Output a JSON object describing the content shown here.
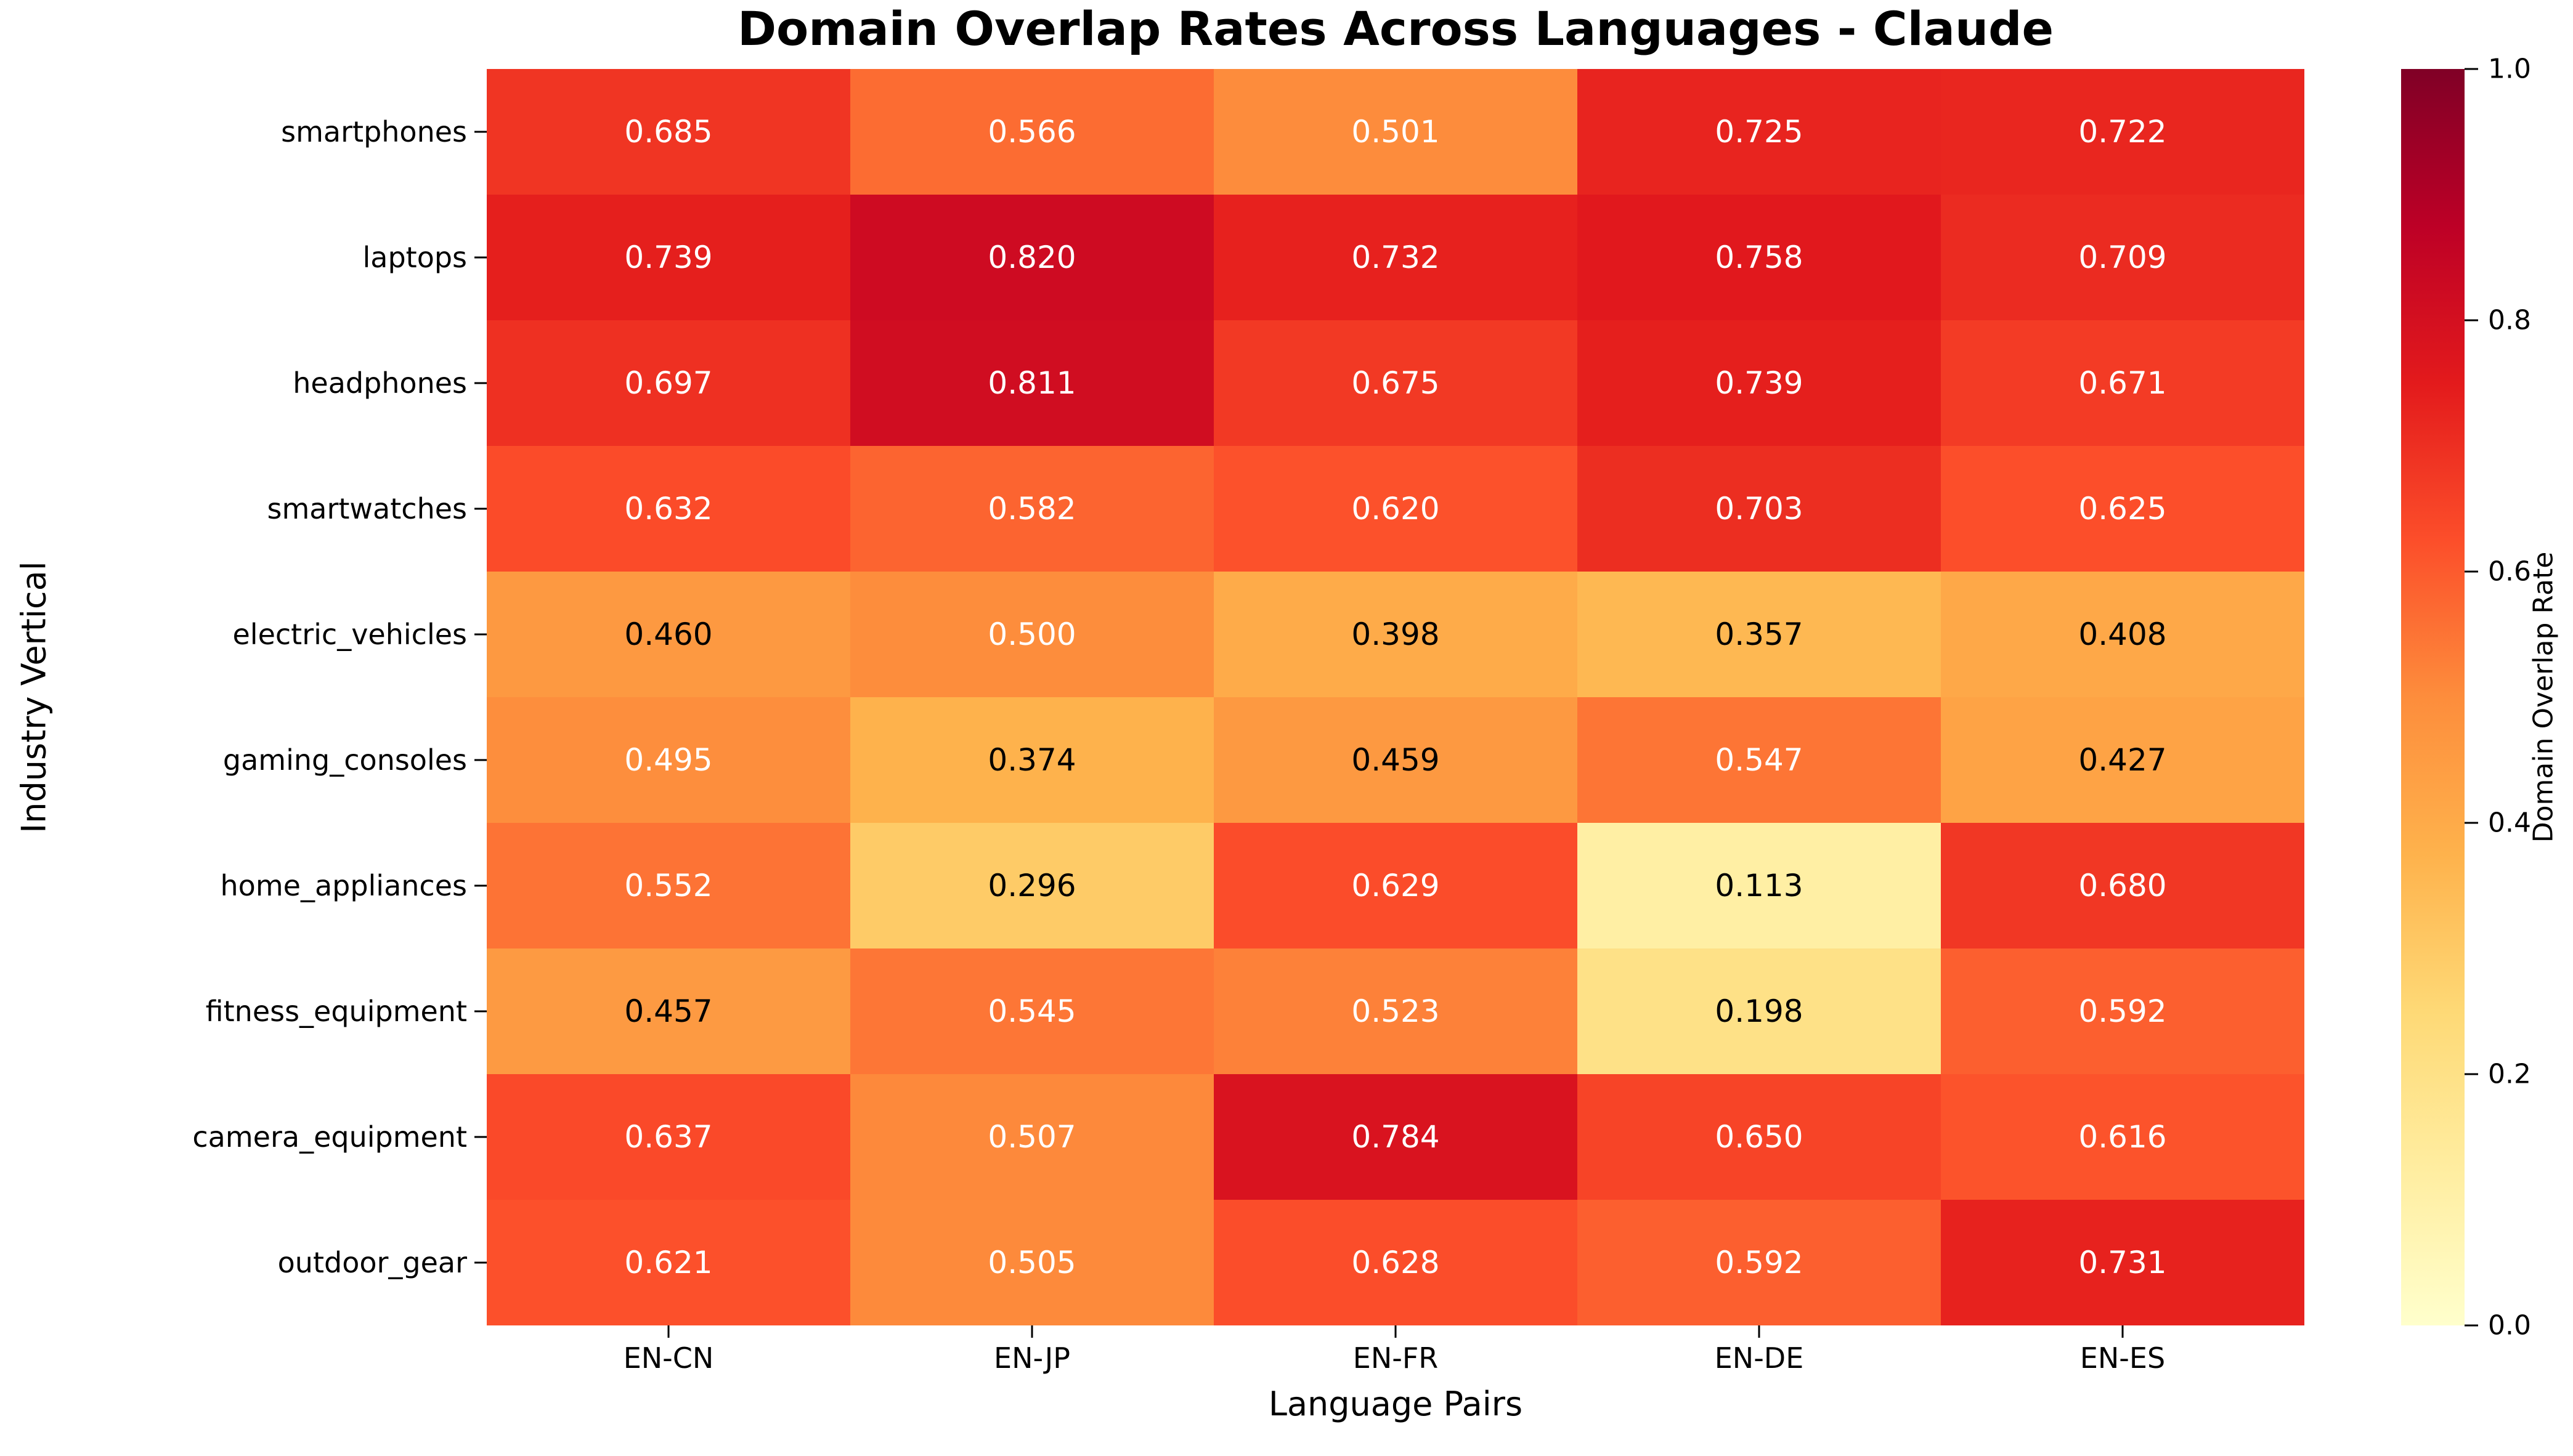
{
  "figure": {
    "background": "#ffffff"
  },
  "chart_data": {
    "type": "heatmap",
    "title": "Domain Overlap Rates Across Languages - Claude",
    "xlabel": "Language Pairs",
    "ylabel": "Industry Vertical",
    "x_categories": [
      "EN-CN",
      "EN-JP",
      "EN-FR",
      "EN-DE",
      "EN-ES"
    ],
    "y_categories": [
      "smartphones",
      "laptops",
      "headphones",
      "smartwatches",
      "electric_vehicles",
      "gaming_consoles",
      "home_appliances",
      "fitness_equipment",
      "camera_equipment",
      "outdoor_gear"
    ],
    "values": [
      [
        0.685,
        0.566,
        0.501,
        0.725,
        0.722
      ],
      [
        0.739,
        0.82,
        0.732,
        0.758,
        0.709
      ],
      [
        0.697,
        0.811,
        0.675,
        0.739,
        0.671
      ],
      [
        0.632,
        0.582,
        0.62,
        0.703,
        0.625
      ],
      [
        0.46,
        0.5,
        0.398,
        0.357,
        0.408
      ],
      [
        0.495,
        0.374,
        0.459,
        0.547,
        0.427
      ],
      [
        0.552,
        0.296,
        0.629,
        0.113,
        0.68
      ],
      [
        0.457,
        0.545,
        0.523,
        0.198,
        0.592
      ],
      [
        0.637,
        0.507,
        0.784,
        0.65,
        0.616
      ],
      [
        0.621,
        0.505,
        0.628,
        0.592,
        0.731
      ]
    ],
    "value_decimals": 3,
    "vmin": 0.0,
    "vmax": 1.0,
    "grid": false,
    "colormap": "YlOrRd",
    "colormap_stops": [
      {
        "pos": 0.0,
        "color": "#ffffcc"
      },
      {
        "pos": 0.125,
        "color": "#ffeda0"
      },
      {
        "pos": 0.25,
        "color": "#fed976"
      },
      {
        "pos": 0.375,
        "color": "#feb24c"
      },
      {
        "pos": 0.5,
        "color": "#fd8d3c"
      },
      {
        "pos": 0.625,
        "color": "#fc4e2a"
      },
      {
        "pos": 0.75,
        "color": "#e31a1c"
      },
      {
        "pos": 0.875,
        "color": "#bd0026"
      },
      {
        "pos": 1.0,
        "color": "#800026"
      }
    ],
    "annotation_text_colors": {
      "light": "#ffffff",
      "dark": "#000000"
    },
    "colorbar": {
      "label": "Domain Overlap Rate",
      "ticks": [
        0.0,
        0.2,
        0.4,
        0.6,
        0.8,
        1.0
      ],
      "tick_decimals": 1,
      "position": "right"
    }
  }
}
